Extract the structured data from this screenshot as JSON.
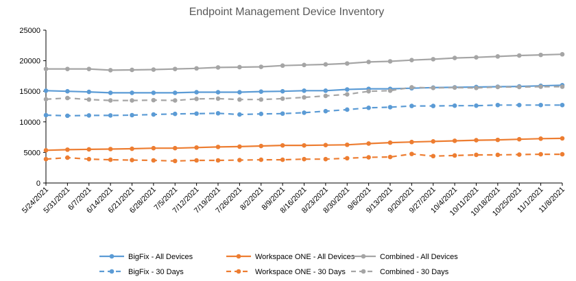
{
  "chart_data": {
    "type": "line",
    "title": "Endpoint Management Device Inventory",
    "xlabel": "",
    "ylabel": "",
    "ylim": [
      0,
      25000
    ],
    "yticks": [
      0,
      5000,
      10000,
      15000,
      20000,
      25000
    ],
    "ytick_labels": [
      "0",
      "5000",
      "10000",
      "15000",
      "20000",
      "25000"
    ],
    "grid": false,
    "legend_position": "bottom",
    "categories": [
      "5/24/2021",
      "5/31/2021",
      "6/7/2021",
      "6/14/2021",
      "6/21/2021",
      "6/28/2021",
      "7/5/2021",
      "7/12/2021",
      "7/19/2021",
      "7/26/2021",
      "8/2/2021",
      "8/9/2021",
      "8/16/2021",
      "8/23/2021",
      "8/30/2021",
      "9/6/2021",
      "9/13/2021",
      "9/20/2021",
      "9/27/2021",
      "10/4/2021",
      "10/11/2021",
      "10/18/2021",
      "10/25/2021",
      "11/1/2021",
      "11/8/2021"
    ],
    "series": [
      {
        "name": "BigFix - All Devices",
        "color": "#5B9BD5",
        "dash": "solid",
        "values": [
          15100,
          15000,
          14900,
          14750,
          14750,
          14750,
          14750,
          14850,
          14850,
          14850,
          14950,
          15000,
          15100,
          15100,
          15300,
          15400,
          15400,
          15500,
          15600,
          15650,
          15700,
          15750,
          15800,
          15900,
          16000
        ]
      },
      {
        "name": "Workspace ONE - All Devices",
        "color": "#ED7D31",
        "dash": "solid",
        "values": [
          5350,
          5450,
          5500,
          5550,
          5600,
          5700,
          5700,
          5800,
          5900,
          5950,
          6050,
          6150,
          6150,
          6200,
          6250,
          6450,
          6600,
          6700,
          6800,
          6900,
          7000,
          7050,
          7150,
          7250,
          7300
        ]
      },
      {
        "name": "Combined - All Devices",
        "color": "#A5A5A5",
        "dash": "solid",
        "values": [
          18650,
          18650,
          18650,
          18450,
          18500,
          18550,
          18650,
          18750,
          18900,
          18950,
          19000,
          19200,
          19300,
          19400,
          19550,
          19800,
          19900,
          20100,
          20250,
          20450,
          20550,
          20700,
          20850,
          20950,
          21050
        ]
      },
      {
        "name": "BigFix - 30 Days",
        "color": "#5B9BD5",
        "dash": "dashed",
        "values": [
          11100,
          11000,
          11050,
          11050,
          11100,
          11200,
          11300,
          11350,
          11400,
          11200,
          11300,
          11350,
          11500,
          11750,
          12000,
          12300,
          12400,
          12600,
          12600,
          12650,
          12650,
          12750,
          12750,
          12750,
          12750
        ]
      },
      {
        "name": "Workspace ONE - 30 Days",
        "color": "#ED7D31",
        "dash": "dashed",
        "values": [
          3900,
          4150,
          3900,
          3800,
          3750,
          3700,
          3600,
          3700,
          3700,
          3750,
          3800,
          3800,
          3900,
          3900,
          4050,
          4200,
          4250,
          4750,
          4400,
          4500,
          4600,
          4600,
          4650,
          4700,
          4700
        ]
      },
      {
        "name": "Combined - 30 Days",
        "color": "#A5A5A5",
        "dash": "dashed",
        "values": [
          13700,
          13900,
          13650,
          13500,
          13500,
          13550,
          13500,
          13750,
          13800,
          13650,
          13650,
          13800,
          14000,
          14250,
          14500,
          15000,
          15100,
          15650,
          15550,
          15600,
          15550,
          15700,
          15700,
          15750,
          15750
        ]
      }
    ]
  }
}
